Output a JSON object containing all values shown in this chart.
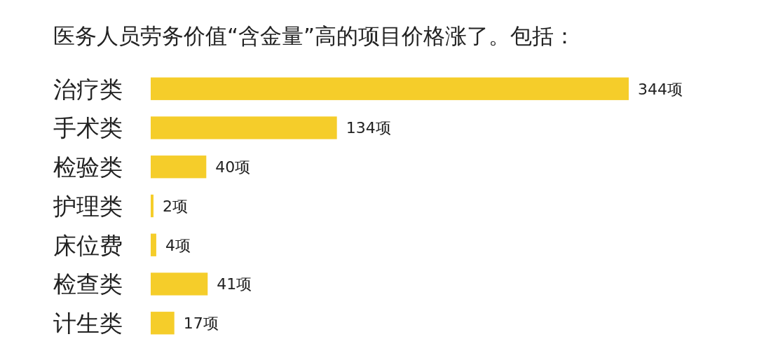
{
  "chart_data": {
    "type": "bar",
    "orientation": "horizontal",
    "title": "医务人员劳务价值“含金量”高的项目价格涨了。包括：",
    "categories": [
      "治疗类",
      "手术类",
      "检验类",
      "护理类",
      "床位费",
      "检查类",
      "计生类"
    ],
    "values": [
      344,
      134,
      40,
      2,
      4,
      41,
      17
    ],
    "value_labels": [
      "344项",
      "134项",
      "40项",
      "2项",
      "4项",
      "41项",
      "17项"
    ],
    "color": "#f5cd2a"
  }
}
